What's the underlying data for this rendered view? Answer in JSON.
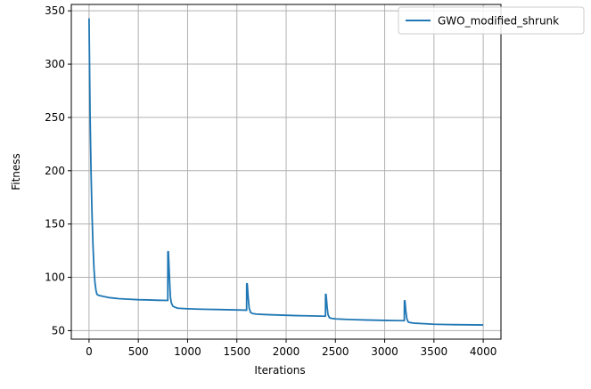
{
  "chart_data": {
    "type": "line",
    "title": "",
    "xlabel": "Iterations",
    "ylabel": "Fitness",
    "xlim": [
      -180,
      4180
    ],
    "ylim": [
      42,
      356
    ],
    "xticks": [
      0,
      500,
      1000,
      1500,
      2000,
      2500,
      3000,
      3500,
      4000
    ],
    "yticks": [
      50,
      100,
      150,
      200,
      250,
      300,
      350
    ],
    "grid": true,
    "legend_position": "top-right",
    "series": [
      {
        "name": "GWO_modified_shrunk",
        "color": "#1f77b4",
        "x": [
          0,
          5,
          10,
          20,
          30,
          40,
          50,
          60,
          70,
          80,
          100,
          150,
          200,
          300,
          400,
          500,
          600,
          700,
          799,
          800,
          805,
          815,
          825,
          835,
          850,
          870,
          900,
          1000,
          1100,
          1200,
          1300,
          1400,
          1500,
          1599,
          1600,
          1605,
          1615,
          1625,
          1640,
          1660,
          1700,
          1800,
          1900,
          2000,
          2100,
          2200,
          2300,
          2399,
          2400,
          2405,
          2415,
          2425,
          2440,
          2460,
          2500,
          2600,
          2700,
          2800,
          2900,
          3000,
          3100,
          3199,
          3200,
          3205,
          3215,
          3225,
          3240,
          3260,
          3300,
          3400,
          3500,
          3600,
          3700,
          3800,
          3900,
          4000
        ],
        "y": [
          343,
          300,
          255,
          200,
          160,
          130,
          108,
          95,
          88,
          84,
          83,
          82,
          81,
          80,
          79.5,
          79,
          78.8,
          78.5,
          78.3,
          124,
          124,
          102,
          82,
          76,
          73,
          72,
          71,
          70.5,
          70.2,
          70,
          69.8,
          69.6,
          69.4,
          69.2,
          94,
          94,
          81,
          71,
          67,
          66,
          65.5,
          65,
          64.7,
          64.4,
          64.1,
          63.9,
          63.7,
          63.5,
          84,
          84,
          73,
          65,
          62,
          61.5,
          61,
          60.6,
          60.3,
          60,
          59.8,
          59.6,
          59.4,
          59.3,
          78,
          78,
          68,
          61,
          58,
          57.5,
          57,
          56.5,
          56,
          55.8,
          55.6,
          55.5,
          55.4,
          55.3
        ]
      }
    ]
  }
}
